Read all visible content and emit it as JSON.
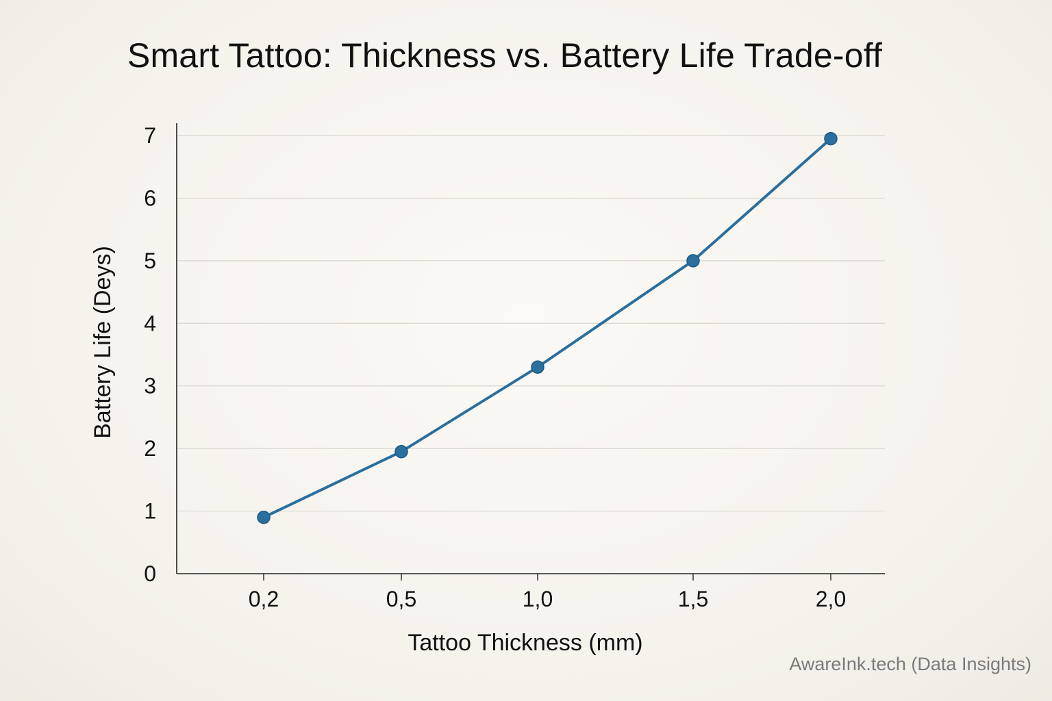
{
  "chart_data": {
    "type": "line",
    "title": "Smart Tattoo: Thickness vs. Battery Life Trade-off",
    "xlabel": "Tattoo Thickness (mm)",
    "ylabel": "Battery Life (Deys)",
    "categories": [
      "0,2",
      "0,5",
      "1,0",
      "1,5",
      "2,0"
    ],
    "series": [
      {
        "values": [
          0.9,
          1.95,
          3.3,
          5.0,
          6.95
        ]
      }
    ],
    "ylim": [
      0,
      7
    ],
    "yticks": [
      "0",
      "1",
      "2",
      "3",
      "4",
      "5",
      "6",
      "7"
    ],
    "grid": true,
    "legend": "none",
    "colors": {
      "line": "#2a6f9e",
      "marker": "#2a6f9e",
      "grid": "#d9d6d0",
      "axis": "#222222"
    }
  },
  "footer": {
    "source": "AwareInk.tech (Data Insights)"
  }
}
